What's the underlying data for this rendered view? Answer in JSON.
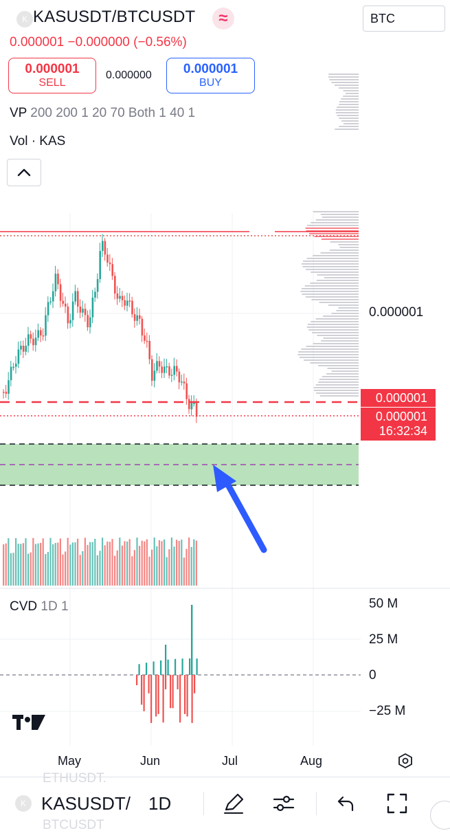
{
  "header": {
    "symbol_icon": "K",
    "symbol": "KASUSDT/BTCUSDT",
    "badge_icon": "≈",
    "currency": "BTC",
    "last": "0.000001",
    "change": "−0.000000",
    "change_pct": "(−0.56%)"
  },
  "trade": {
    "sell_price": "0.000001",
    "sell_label": "SELL",
    "spread": "0.000000",
    "buy_price": "0.000001",
    "buy_label": "BUY"
  },
  "indicators": {
    "vp_name": "VP",
    "vp_params": "200 200 1 20 70 Both 1 40 1",
    "vol_label": "Vol · KAS",
    "cvd_name": "CVD",
    "cvd_params": "1D 1"
  },
  "price_axis": {
    "mid_label": "0.000001",
    "tag_price_1": "0.000001",
    "tag_price_2": "0.000001",
    "countdown": "16:32:34"
  },
  "cvd_axis": [
    "50 M",
    "25 M",
    "0",
    "−25 M"
  ],
  "time_axis": [
    "May",
    "Jun",
    "Jul",
    "Aug"
  ],
  "bottom_bar": {
    "ghost_top": "ETHUSDT.",
    "symbol": "KASUSDT/",
    "ghost_bottom": "BTCUSDT",
    "interval": "1D"
  },
  "colors": {
    "up": "#26a69a",
    "down": "#ef5350",
    "accent_red": "#f23645",
    "accent_blue": "#2962ff",
    "zone_fill": "#b9e1bb",
    "arrow": "#2e5bff"
  }
}
